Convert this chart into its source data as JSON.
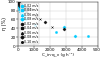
{
  "xlabel": "C_in·q_v (g h⁻¹)",
  "ylabel": "η (%)",
  "xlim": [
    0,
    5000
  ],
  "ylim": [
    0,
    100
  ],
  "xticks": [
    0,
    1000,
    2000,
    3000,
    4000,
    5000
  ],
  "yticks": [
    0,
    20,
    40,
    60,
    80,
    100
  ],
  "cyan_color": "#00ccff",
  "black_color": "#111111",
  "grid_color": "#cccccc",
  "background_color": "#ffffff",
  "cyan_series": [
    {
      "marker": "o",
      "x": [
        30,
        50,
        70,
        90,
        110,
        140,
        170,
        210,
        260,
        1050,
        2350,
        4350
      ],
      "y": [
        96,
        93,
        91,
        89,
        87,
        85,
        83,
        81,
        78,
        47,
        32,
        22
      ]
    },
    {
      "marker": "s",
      "x": [
        65,
        115,
        170,
        250,
        360,
        460,
        570
      ],
      "y": [
        90,
        87,
        82,
        77,
        72,
        67,
        62
      ]
    },
    {
      "marker": "^",
      "x": [
        85,
        135,
        195,
        275,
        375,
        465
      ],
      "y": [
        84,
        80,
        74,
        70,
        64,
        60
      ]
    },
    {
      "marker": "D",
      "x": [
        2850,
        3550
      ],
      "y": [
        42,
        22
      ]
    }
  ],
  "black_series": [
    {
      "marker": "o",
      "x": [
        30,
        60,
        80,
        100,
        130,
        160,
        190,
        240,
        270,
        340,
        390,
        440,
        490,
        590,
        690,
        790
      ],
      "y": [
        99,
        98,
        97,
        96,
        95,
        94,
        93,
        92,
        91,
        90,
        89,
        88,
        87,
        86,
        85,
        84
      ]
    },
    {
      "marker": "s",
      "x": [
        40,
        80,
        120,
        170,
        240,
        340,
        440,
        540,
        640
      ],
      "y": [
        97,
        96,
        94,
        92,
        90,
        88,
        86,
        84,
        82
      ]
    },
    {
      "marker": "^",
      "x": [
        50,
        90,
        140,
        210,
        290,
        390,
        490,
        590
      ],
      "y": [
        95,
        93,
        91,
        88,
        85,
        82,
        79,
        76
      ]
    },
    {
      "marker": "D",
      "x": [
        1100,
        1700,
        2900
      ],
      "y": [
        68,
        55,
        38
      ]
    },
    {
      "marker": "x",
      "x": [
        1400,
        2100
      ],
      "y": [
        60,
        42
      ]
    }
  ],
  "cyan_labels": [
    "0.02 m/s",
    "0.04 m/s",
    "0.06 m/s",
    "0.08 m/s"
  ],
  "black_labels": [
    "0.02 m/s",
    "0.04 m/s",
    "0.06 m/s",
    "0.08 m/s",
    "0.10 m/s"
  ]
}
